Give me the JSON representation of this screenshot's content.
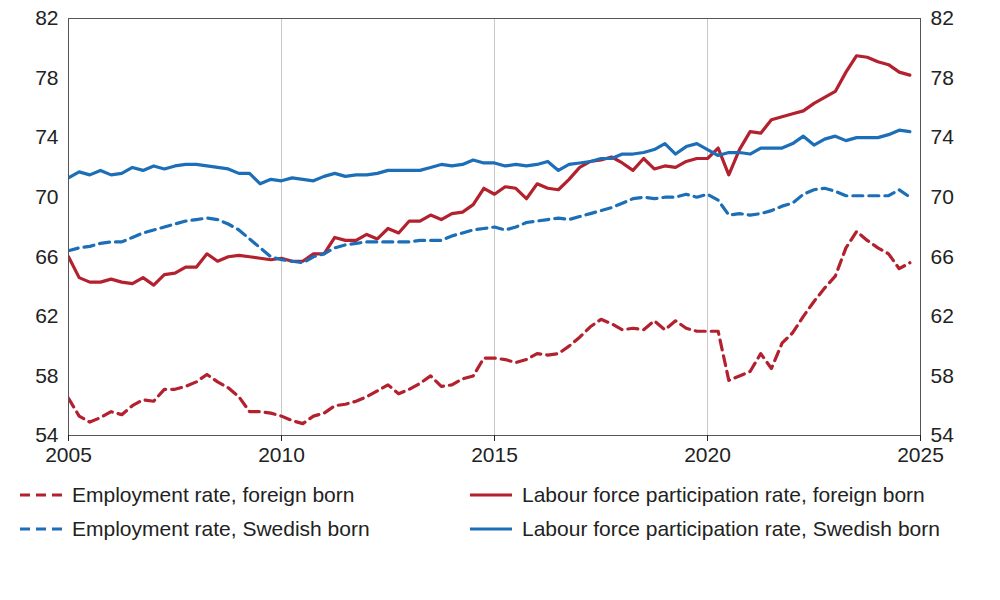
{
  "chart_data": {
    "type": "line",
    "x": [
      2005,
      2005.25,
      2005.5,
      2005.75,
      2006,
      2006.25,
      2006.5,
      2006.75,
      2007,
      2007.25,
      2007.5,
      2007.75,
      2008,
      2008.25,
      2008.5,
      2008.75,
      2009,
      2009.25,
      2009.5,
      2009.75,
      2010,
      2010.25,
      2010.5,
      2010.75,
      2011,
      2011.25,
      2011.5,
      2011.75,
      2012,
      2012.25,
      2012.5,
      2012.75,
      2013,
      2013.25,
      2013.5,
      2013.75,
      2014,
      2014.25,
      2014.5,
      2014.75,
      2015,
      2015.25,
      2015.5,
      2015.75,
      2016,
      2016.25,
      2016.5,
      2016.75,
      2017,
      2017.25,
      2017.5,
      2017.75,
      2018,
      2018.25,
      2018.5,
      2018.75,
      2019,
      2019.25,
      2019.5,
      2019.75,
      2020,
      2020.25,
      2020.5,
      2020.75,
      2021,
      2021.25,
      2021.5,
      2021.75,
      2022,
      2022.25,
      2022.5,
      2022.75,
      2023,
      2023.25,
      2023.5,
      2023.75,
      2024,
      2024.25,
      2024.5,
      2024.75
    ],
    "series": [
      {
        "name": "Employment rate, foreign born",
        "color": "#b3202e",
        "line_style": "dashed",
        "values": [
          56.5,
          55.3,
          54.9,
          55.2,
          55.6,
          55.4,
          56.0,
          56.4,
          56.3,
          57.1,
          57.1,
          57.3,
          57.6,
          58.1,
          57.6,
          57.2,
          56.6,
          55.6,
          55.6,
          55.5,
          55.3,
          55.0,
          54.8,
          55.3,
          55.5,
          56.0,
          56.1,
          56.3,
          56.6,
          57.0,
          57.4,
          56.8,
          57.1,
          57.5,
          58.0,
          57.3,
          57.4,
          57.8,
          58.0,
          59.2,
          59.2,
          59.1,
          58.9,
          59.1,
          59.5,
          59.4,
          59.5,
          60.0,
          60.6,
          61.3,
          61.8,
          61.5,
          61.1,
          61.2,
          61.1,
          61.7,
          61.1,
          61.7,
          61.2,
          61.0,
          61.0,
          61.0,
          57.7,
          58.0,
          58.3,
          59.5,
          58.5,
          60.2,
          60.9,
          62.0,
          63.0,
          63.9,
          64.7,
          66.6,
          67.7,
          67.1,
          66.6,
          66.2,
          65.2,
          65.6
        ]
      },
      {
        "name": "Labour force participation rate, foreign born",
        "color": "#b3202e",
        "line_style": "solid",
        "values": [
          66.0,
          64.6,
          64.3,
          64.3,
          64.5,
          64.3,
          64.2,
          64.6,
          64.1,
          64.8,
          64.9,
          65.3,
          65.3,
          66.2,
          65.7,
          66.0,
          66.1,
          66.0,
          65.9,
          65.8,
          65.9,
          65.7,
          65.7,
          66.2,
          66.2,
          67.3,
          67.1,
          67.1,
          67.5,
          67.2,
          67.9,
          67.6,
          68.4,
          68.4,
          68.8,
          68.5,
          68.9,
          69.0,
          69.5,
          70.6,
          70.2,
          70.7,
          70.6,
          69.9,
          70.9,
          70.6,
          70.5,
          71.2,
          72.0,
          72.4,
          72.5,
          72.7,
          72.3,
          71.8,
          72.6,
          71.9,
          72.1,
          72.0,
          72.4,
          72.6,
          72.6,
          73.3,
          71.5,
          73.2,
          74.4,
          74.3,
          75.2,
          75.4,
          75.6,
          75.8,
          76.3,
          76.7,
          77.1,
          78.4,
          79.5,
          79.4,
          79.1,
          78.9,
          78.4,
          78.2
        ]
      },
      {
        "name": "Employment rate, Swedish born",
        "color": "#1c6fb7",
        "line_style": "dashed",
        "values": [
          66.4,
          66.6,
          66.7,
          66.9,
          67.0,
          67.0,
          67.3,
          67.6,
          67.8,
          68.0,
          68.2,
          68.4,
          68.5,
          68.6,
          68.5,
          68.2,
          67.8,
          67.2,
          66.6,
          66.0,
          65.8,
          65.7,
          65.6,
          66.0,
          66.2,
          66.6,
          66.8,
          66.9,
          67.0,
          67.0,
          67.0,
          67.0,
          67.0,
          67.1,
          67.1,
          67.1,
          67.4,
          67.6,
          67.8,
          67.9,
          68.0,
          67.8,
          68.0,
          68.3,
          68.4,
          68.5,
          68.6,
          68.5,
          68.7,
          68.9,
          69.1,
          69.3,
          69.6,
          69.9,
          70.0,
          69.9,
          70.0,
          70.0,
          70.2,
          70.0,
          70.2,
          69.8,
          68.8,
          68.9,
          68.8,
          68.9,
          69.1,
          69.4,
          69.6,
          70.2,
          70.5,
          70.6,
          70.4,
          70.1,
          70.1,
          70.1,
          70.1,
          70.1,
          70.5,
          70.0
        ]
      },
      {
        "name": "Labour force participation rate, Swedish born",
        "color": "#1c6fb7",
        "line_style": "solid",
        "values": [
          71.3,
          71.7,
          71.5,
          71.8,
          71.5,
          71.6,
          72.0,
          71.8,
          72.1,
          71.9,
          72.1,
          72.2,
          72.2,
          72.1,
          72.0,
          71.9,
          71.6,
          71.6,
          70.9,
          71.2,
          71.1,
          71.3,
          71.2,
          71.1,
          71.4,
          71.6,
          71.4,
          71.5,
          71.5,
          71.6,
          71.8,
          71.8,
          71.8,
          71.8,
          72.0,
          72.2,
          72.1,
          72.2,
          72.5,
          72.3,
          72.3,
          72.1,
          72.2,
          72.1,
          72.2,
          72.4,
          71.8,
          72.2,
          72.3,
          72.4,
          72.6,
          72.6,
          72.9,
          72.9,
          73.0,
          73.2,
          73.6,
          72.9,
          73.4,
          73.6,
          73.2,
          72.8,
          73.0,
          73.0,
          72.9,
          73.3,
          73.3,
          73.3,
          73.6,
          74.1,
          73.5,
          73.9,
          74.1,
          73.8,
          74.0,
          74.0,
          74.0,
          74.2,
          74.5,
          74.4
        ]
      }
    ],
    "xlim": [
      2005,
      2025
    ],
    "xticks": [
      2005,
      2010,
      2015,
      2020,
      2025
    ],
    "ylim": [
      54,
      82
    ],
    "yticks": [
      54,
      58,
      62,
      66,
      70,
      74,
      78,
      82
    ],
    "grid": "x",
    "legend": "bottom"
  }
}
